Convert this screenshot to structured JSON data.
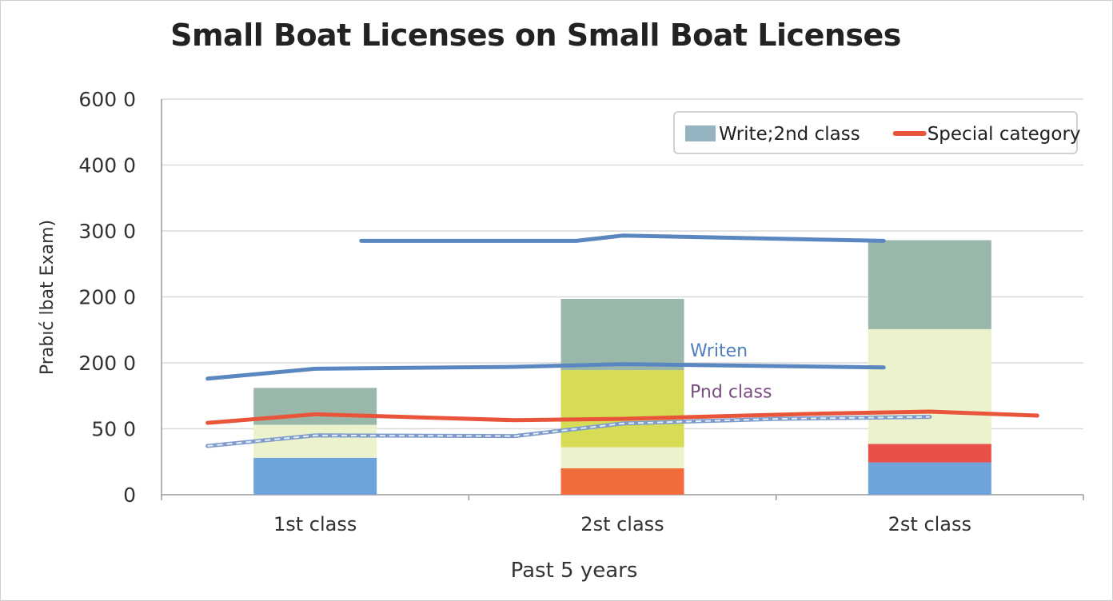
{
  "chart_data": {
    "type": "bar",
    "title": "Small Boat Licenses on Small Boat Licenses",
    "xlabel": "Past 5 years",
    "ylabel": "Prabıć lbat Exam)",
    "categories": [
      "1st class",
      "2st class",
      "2st class"
    ],
    "y_tick_labels": [
      "0",
      "50 0",
      "200 0",
      "200 0",
      "300 0",
      "400 0",
      "600 0"
    ],
    "stacked_segments": [
      [
        {
          "color": "#6fa3dc",
          "value": 56
        },
        {
          "color": "#ecf2cc",
          "value": 50
        },
        {
          "color": "#9ab8a9",
          "value": 56
        }
      ],
      [
        {
          "color": "#f26b3a",
          "value": 40
        },
        {
          "color": "#ecf2cc",
          "value": 32
        },
        {
          "color": "#d7dc57",
          "value": 117
        },
        {
          "color": "#9ab8a9",
          "value": 108
        }
      ],
      [
        {
          "color": "#6fa3dc",
          "value": 49
        },
        {
          "color": "#e9504a",
          "value": 28
        },
        {
          "color": "#ecf2cc",
          "value": 174
        },
        {
          "color": "#9ab8a9",
          "value": 135
        }
      ]
    ],
    "lines": [
      {
        "color": "#5b87c0",
        "width": 5,
        "dashed": false,
        "points": [
          [
            0.15,
            385
          ],
          [
            0.85,
            385
          ],
          [
            1.0,
            393
          ],
          [
            1.85,
            385
          ]
        ]
      },
      {
        "color": "#5b87c0",
        "width": 5,
        "dashed": false,
        "points": [
          [
            -0.35,
            176
          ],
          [
            0.0,
            191
          ],
          [
            0.65,
            194
          ],
          [
            1.0,
            198
          ],
          [
            1.85,
            193
          ]
        ]
      },
      {
        "color": "#e8553a",
        "width": 5,
        "dashed": false,
        "points": [
          [
            -0.35,
            109
          ],
          [
            0.0,
            122
          ],
          [
            0.65,
            113
          ],
          [
            1.0,
            115
          ],
          [
            1.65,
            123
          ],
          [
            2.0,
            126
          ],
          [
            2.35,
            120
          ]
        ]
      },
      {
        "color": "#7d9ccc",
        "width": 5,
        "dashed": true,
        "points": [
          [
            -0.35,
            74
          ],
          [
            0.0,
            90
          ],
          [
            0.65,
            89
          ],
          [
            1.0,
            108
          ],
          [
            1.5,
            115
          ],
          [
            2.0,
            118
          ]
        ]
      }
    ],
    "legend": {
      "position": "top-right",
      "entries": [
        {
          "label": "Write;2nd class",
          "color": "#93b4c0",
          "marker": "box"
        },
        {
          "label": "Special category",
          "color": "#e8553a",
          "marker": "line"
        }
      ]
    },
    "annotations": [
      {
        "text": "Writen",
        "color": "#4f7fbf",
        "x": 1.22,
        "y": 210
      },
      {
        "text": "Pnd class",
        "color": "#7a4c82",
        "x": 1.22,
        "y": 147
      }
    ],
    "ylim": [
      0,
      600
    ],
    "grid": true
  }
}
